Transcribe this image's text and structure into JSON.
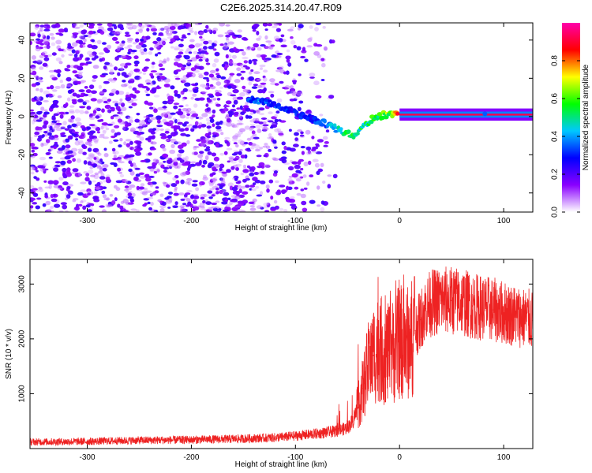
{
  "title": "C2E6.2025.314.20.47.R09",
  "chart_data": [
    {
      "type": "heatmap",
      "name": "spectrogram",
      "xlabel": "Height of straight line (km)",
      "ylabel": "Frequency (Hz)",
      "xlim": [
        -355,
        128
      ],
      "ylim": [
        -50,
        49
      ],
      "xticks": [
        -300,
        -200,
        -100,
        0,
        100
      ],
      "yticks": [
        -40,
        -20,
        0,
        20,
        40
      ],
      "colorbar": {
        "label": "Normalized spectral amplitude",
        "range": [
          0,
          1
        ],
        "ticks": [
          "0.0",
          "0.2",
          "0.4",
          "0.6",
          "0.8"
        ],
        "tick_values": [
          0,
          0.2,
          0.4,
          0.6,
          0.8
        ],
        "colors": [
          "#ffffff",
          "#8a00ff",
          "#0000ff",
          "#00c8ff",
          "#00ff00",
          "#ffff00",
          "#ff0000",
          "#ff00aa"
        ]
      },
      "signal_track": {
        "x": [
          -145,
          -130,
          -115,
          -100,
          -85,
          -70,
          -55,
          -45,
          -35,
          -25,
          -15,
          -5,
          0,
          20,
          60,
          80,
          100,
          128
        ],
        "y": [
          9,
          8,
          5,
          2,
          -1,
          -4,
          -8,
          -10,
          -5,
          -1,
          1,
          1,
          1,
          1,
          1,
          1,
          1,
          1
        ],
        "amplitude": [
          0.3,
          0.35,
          0.3,
          0.28,
          0.3,
          0.35,
          0.5,
          0.55,
          0.5,
          0.55,
          0.6,
          0.7,
          0.9,
          0.92,
          0.92,
          0.92,
          0.92,
          0.92
        ]
      }
    },
    {
      "type": "line",
      "name": "snr",
      "xlabel": "Height of straight line (km)",
      "ylabel": "SNR (10 * v/v)",
      "color": "#ee2222",
      "xlim": [
        -355,
        128
      ],
      "ylim": [
        0,
        3450
      ],
      "xticks": [
        -300,
        -200,
        -100,
        0,
        100
      ],
      "yticks": [
        1000,
        2000,
        3000
      ],
      "x": [
        -355,
        -300,
        -250,
        -200,
        -150,
        -120,
        -100,
        -80,
        -60,
        -50,
        -45,
        -40,
        -35,
        -30,
        -25,
        -20,
        -15,
        -10,
        -5,
        0,
        5,
        10,
        15,
        20,
        25,
        30,
        40,
        50,
        60,
        70,
        80,
        90,
        100,
        110,
        120,
        128
      ],
      "y": [
        120,
        130,
        150,
        160,
        180,
        200,
        230,
        270,
        320,
        380,
        500,
        750,
        1100,
        1500,
        1700,
        1850,
        1750,
        1700,
        1800,
        1950,
        1900,
        1950,
        2150,
        2350,
        2550,
        2650,
        2700,
        2700,
        2680,
        2600,
        2570,
        2530,
        2480,
        2430,
        2380,
        2340
      ]
    }
  ]
}
